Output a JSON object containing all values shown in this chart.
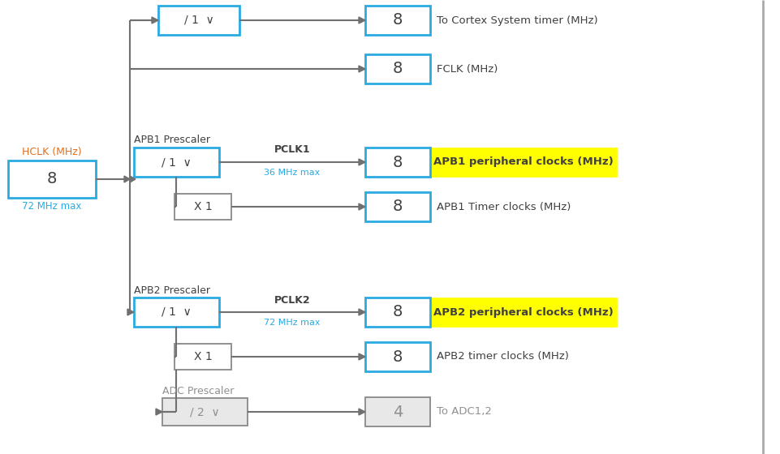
{
  "bg_color": "#ffffff",
  "box_color_blue": "#29ABE2",
  "box_fill_white": "#ffffff",
  "box_fill_yellow": "#FFFF00",
  "box_fill_gray": "#e8e8e8",
  "text_dark": "#404040",
  "text_orange": "#E07020",
  "text_blue": "#29ABE2",
  "text_gray": "#909090",
  "arrow_color": "#707070",
  "line_color": "#707070",
  "border_color": "#909090",
  "hclk_label": "HCLK (MHz)",
  "hclk_value": "8",
  "hclk_subtext": "72 MHz max",
  "apb1_prescaler_label": "APB1 Prescaler",
  "apb1_pclk1_label": "PCLK1",
  "apb1_pclk1_subtext": "36 MHz max",
  "apb1_periph_value": "8",
  "apb1_periph_label": "APB1 peripheral clocks (MHz)",
  "apb1_timer_value": "8",
  "apb1_timer_label": "APB1 Timer clocks (MHz)",
  "apb2_prescaler_label": "APB2 Prescaler",
  "apb2_pclk2_label": "PCLK2",
  "apb2_pclk2_subtext": "72 MHz max",
  "apb2_periph_value": "8",
  "apb2_periph_label": "APB2 peripheral clocks (MHz)",
  "apb2_timer_value": "8",
  "apb2_timer_label": "APB2 timer clocks (MHz)",
  "adc_prescaler_label": "ADC Prescaler",
  "adc_value": "4",
  "adc_label": "To ADC1,2",
  "cortex_value": "8",
  "cortex_label": "To Cortex System timer (MHz)",
  "fclk_value": "8",
  "fclk_label": "FCLK (MHz)",
  "prescaler_text": "/ 1  ∨",
  "adc_prescaler_text": "/ 2  ∨",
  "x1_text": "X 1"
}
